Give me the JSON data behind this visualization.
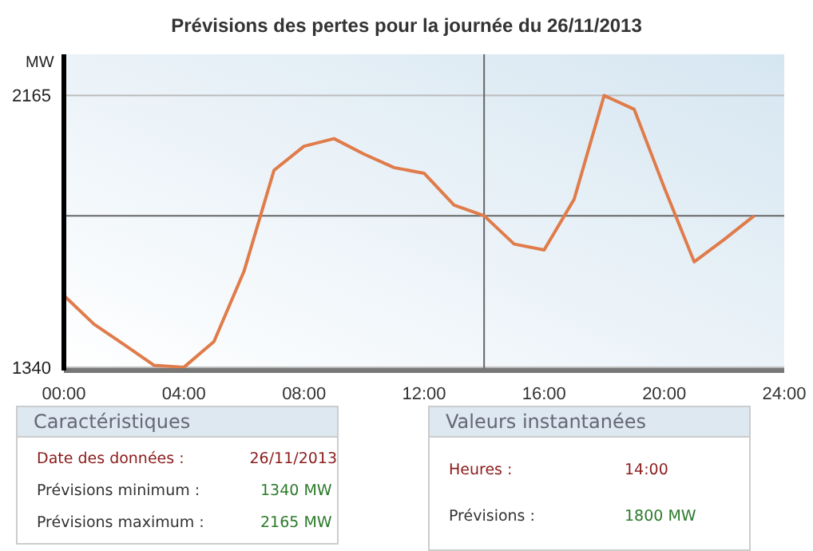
{
  "chart_data": {
    "type": "line",
    "title": "Prévisions des pertes pour la journée du 26/11/2013",
    "ylabel": "MW",
    "x": [
      0,
      1,
      2,
      3,
      4,
      5,
      6,
      7,
      8,
      9,
      10,
      11,
      12,
      13,
      14,
      15,
      16,
      17,
      18,
      19,
      20,
      21,
      22,
      23
    ],
    "series": [
      {
        "color": "#e07b4a",
        "values": [
          1558,
          1471,
          1409,
          1346,
          1340,
          1418,
          1631,
          1938,
          2011,
          2034,
          1987,
          1946,
          1929,
          1832,
          1800,
          1714,
          1696,
          1850,
          2165,
          2123,
          1886,
          1660,
          1728,
          1800
        ]
      }
    ],
    "xlim": [
      0,
      24
    ],
    "xticks": [
      {
        "value": 0,
        "label": "00:00"
      },
      {
        "value": 4,
        "label": "04:00"
      },
      {
        "value": 8,
        "label": "08:00"
      },
      {
        "value": 12,
        "label": "12:00"
      },
      {
        "value": 16,
        "label": "16:00"
      },
      {
        "value": 20,
        "label": "20:00"
      },
      {
        "value": 24,
        "label": "24:00"
      }
    ],
    "ylim": [
      1330,
      2290
    ],
    "yticks": [
      1340,
      2165
    ],
    "grid": "y",
    "marker": "none",
    "line_style": "solid",
    "ref_lines": [
      {
        "axis": "x",
        "value": 14,
        "color": "#666666"
      },
      {
        "axis": "y",
        "value": 1800,
        "color": "#666666"
      }
    ],
    "annotations": [
      "Caractéristiques",
      "Date des données :",
      "26/11/2013",
      "Prévisions minimum :",
      "1340 MW",
      "Prévisions maximum :",
      "2165 MW",
      "Valeurs instantanées",
      "Heures :",
      "14:00",
      "Prévisions :",
      "1800 MW"
    ]
  }
}
